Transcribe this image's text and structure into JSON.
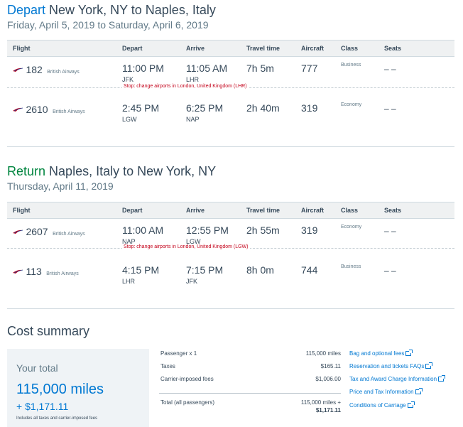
{
  "depart": {
    "prefix": "Depart",
    "title": "New York, NY to Naples, Italy",
    "date": "Friday, April 5, 2019 to Saturday, April 6, 2019",
    "segments": [
      {
        "flight": "182",
        "airline": "British Airways",
        "dep_time": "11:00 PM",
        "dep_code": "JFK",
        "arr_time": "11:05 AM",
        "arr_code": "LHR",
        "travel": "7h 5m",
        "aircraft": "777",
        "class": "Business",
        "seats": "– –"
      },
      {
        "flight": "2610",
        "airline": "British Airways",
        "dep_time": "2:45 PM",
        "dep_code": "LGW",
        "arr_time": "6:25 PM",
        "arr_code": "NAP",
        "travel": "2h 40m",
        "aircraft": "319",
        "class": "Economy",
        "seats": "– –"
      }
    ],
    "stop": "Stop: change airports in London, United Kingdom (LHR)"
  },
  "return": {
    "prefix": "Return",
    "title": "Naples, Italy to New York, NY",
    "date": "Thursday, April 11, 2019",
    "segments": [
      {
        "flight": "2607",
        "airline": "British Airways",
        "dep_time": "11:00 AM",
        "dep_code": "NAP",
        "arr_time": "12:55 PM",
        "arr_code": "LGW",
        "travel": "2h 55m",
        "aircraft": "319",
        "class": "Economy",
        "seats": "– –"
      },
      {
        "flight": "113",
        "airline": "British Airways",
        "dep_time": "4:15 PM",
        "dep_code": "LHR",
        "arr_time": "7:15 PM",
        "arr_code": "JFK",
        "travel": "8h 0m",
        "aircraft": "744",
        "class": "Business",
        "seats": "– –"
      }
    ],
    "stop": "Stop: change airports in London, United Kingdom (LGW)"
  },
  "headers": {
    "flight": "Flight",
    "depart": "Depart",
    "arrive": "Arrive",
    "travel": "Travel time",
    "aircraft": "Aircraft",
    "class": "Class",
    "seats": "Seats"
  },
  "cost": {
    "title": "Cost summary",
    "your_total": "Your total",
    "miles": "115,000 miles",
    "plus": "+ $1,171.11",
    "note": "Includes all taxes and carrier-imposed fees",
    "rows": [
      {
        "label": "Passenger x 1",
        "value": "115,000 miles"
      },
      {
        "label": "Taxes",
        "value": "$165.11"
      },
      {
        "label": "Carrier-imposed fees",
        "value": "$1,006.00"
      }
    ],
    "total_label": "Total (all passengers)",
    "total_miles": "115,000 miles +",
    "total_cash": "$1,171.11"
  },
  "links": [
    "Bag and optional fees",
    "Reservation and tickets FAQs",
    "Tax and Award Charge Information",
    "Price and Tax Information",
    "Conditions of Carriage"
  ],
  "colors": {
    "blue": "#0078d2",
    "green": "#00853f",
    "red": "#c30019"
  }
}
